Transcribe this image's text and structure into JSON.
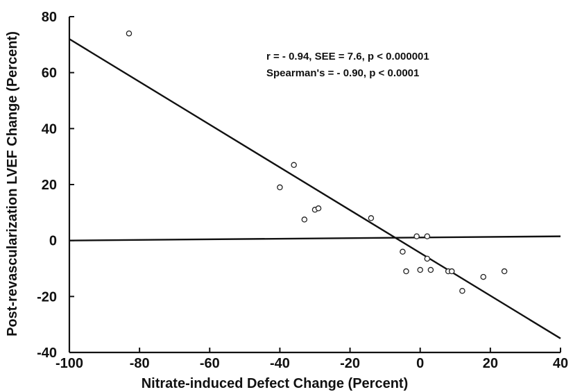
{
  "chart_data": {
    "type": "scatter",
    "xlabel": "Nitrate-induced Defect Change (Percent)",
    "ylabel": "Post-revascularization LVEF Change (Percent)",
    "xlim": [
      -100,
      40
    ],
    "ylim": [
      -40,
      80
    ],
    "xticks": [
      -100,
      -80,
      -60,
      -40,
      -20,
      0,
      20,
      40
    ],
    "yticks": [
      -40,
      -20,
      0,
      20,
      40,
      60,
      80
    ],
    "xtick_labels": [
      "-100",
      "-80",
      "-60",
      "-40",
      "-20",
      "0",
      "20",
      "40"
    ],
    "ytick_labels": [
      "-40",
      "-20",
      "0",
      "20",
      "40",
      "60",
      "80"
    ],
    "annotations": [
      "r = - 0.94, SEE = 7.6, p < 0.000001",
      "Spearman's = - 0.90, p < 0.0001"
    ],
    "regression_line": {
      "x": [
        -100,
        40
      ],
      "y": [
        72,
        -35
      ]
    },
    "zero_line": {
      "x": [
        -100,
        40
      ],
      "y": [
        0,
        1.5
      ]
    },
    "points": [
      {
        "x": -83,
        "y": 74
      },
      {
        "x": -36,
        "y": 27
      },
      {
        "x": -40,
        "y": 19
      },
      {
        "x": -30,
        "y": 11
      },
      {
        "x": -29,
        "y": 11.5
      },
      {
        "x": -33,
        "y": 7.5
      },
      {
        "x": -14,
        "y": 8
      },
      {
        "x": -5,
        "y": -4
      },
      {
        "x": -4,
        "y": -11
      },
      {
        "x": -1,
        "y": 1.5
      },
      {
        "x": 0,
        "y": -10.5
      },
      {
        "x": 2,
        "y": 1.5
      },
      {
        "x": 2,
        "y": -6.5
      },
      {
        "x": 3,
        "y": -10.5
      },
      {
        "x": 8,
        "y": -11
      },
      {
        "x": 9,
        "y": -11
      },
      {
        "x": 12,
        "y": -18
      },
      {
        "x": 18,
        "y": -13
      },
      {
        "x": 24,
        "y": -11
      }
    ]
  }
}
